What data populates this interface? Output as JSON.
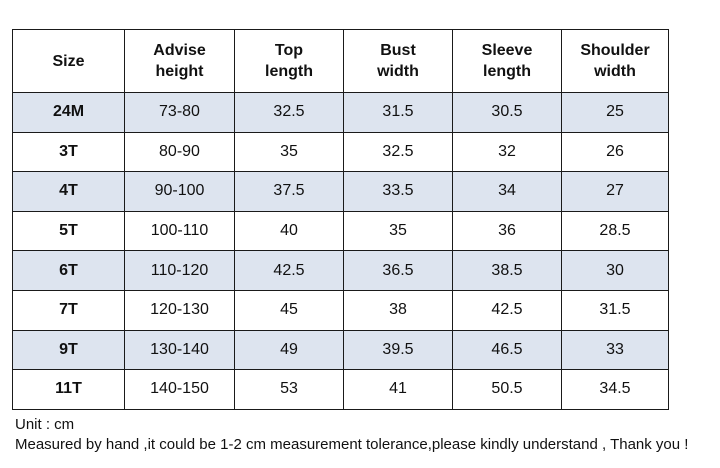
{
  "table": {
    "headers": [
      "Size",
      "Advise\nheight",
      "Top\nlength",
      "Bust\nwidth",
      "Sleeve\nlength",
      "Shoulder\nwidth"
    ],
    "rows": [
      [
        "24M",
        "73-80",
        "32.5",
        "31.5",
        "30.5",
        "25"
      ],
      [
        "3T",
        "80-90",
        "35",
        "32.5",
        "32",
        "26"
      ],
      [
        "4T",
        "90-100",
        "37.5",
        "33.5",
        "34",
        "27"
      ],
      [
        "5T",
        "100-110",
        "40",
        "35",
        "36",
        "28.5"
      ],
      [
        "6T",
        "110-120",
        "42.5",
        "36.5",
        "38.5",
        "30"
      ],
      [
        "7T",
        "120-130",
        "45",
        "38",
        "42.5",
        "31.5"
      ],
      [
        "9T",
        "130-140",
        "49",
        "39.5",
        "46.5",
        "33"
      ],
      [
        "11T",
        "140-150",
        "53",
        "41",
        "50.5",
        "34.5"
      ]
    ]
  },
  "notes": {
    "unit": "Unit : cm",
    "disclaimer": "Measured by hand ,it could be 1-2 cm measurement tolerance,please kindly understand , Thank you !"
  },
  "colors": {
    "shaded_row": "#dde4ef",
    "border": "#1a1a1a"
  }
}
